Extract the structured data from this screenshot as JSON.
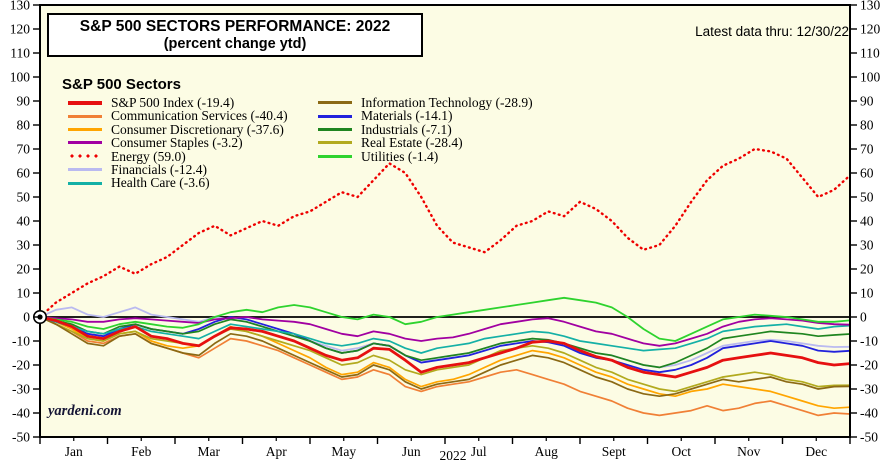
{
  "header": {
    "title_line1": "S&P 500 SECTORS PERFORMANCE: 2022",
    "title_line2": "(percent change ytd)",
    "note": "Latest data thru: 12/30/22"
  },
  "watermark": "yardeni.com",
  "legend": {
    "title": "S&P 500 Sectors",
    "columns": [
      [
        "S&P 500 Index",
        "Communication Services",
        "Consumer Discretionary",
        "Consumer Staples",
        "Energy",
        "Financials",
        "Health Care"
      ],
      [
        "Information Technology",
        "Materials",
        "Industrials",
        "Real Estate",
        "Utilities"
      ]
    ]
  },
  "chart_data": {
    "type": "line",
    "title": "S&P 500 Sectors Performance 2022, percent change ytd",
    "x_axis": {
      "months": [
        "Jan",
        "Feb",
        "Mar",
        "Apr",
        "May",
        "Jun",
        "Jul",
        "Aug",
        "Sept",
        "Oct",
        "Nov",
        "Dec"
      ],
      "year": "2022",
      "points_per_year": 52
    },
    "y_axis": {
      "min": -50,
      "max": 130,
      "step": 10
    },
    "grid": false,
    "legend_position": "top-left",
    "draw_order": [
      "Financials",
      "Communication Services",
      "Consumer Discretionary",
      "Real Estate",
      "Information Technology",
      "Materials",
      "Industrials",
      "Health Care",
      "Consumer Staples",
      "Utilities",
      "S&P 500 Index",
      "Energy"
    ],
    "series": [
      {
        "name": "S&P 500 Index",
        "ytd": "-19.4",
        "color": "#E61010",
        "width": 2.8,
        "style": "solid",
        "values": [
          0,
          -1.5,
          -4,
          -8,
          -9,
          -6,
          -4,
          -8,
          -9,
          -11,
          -12,
          -8,
          -4.5,
          -5,
          -6,
          -8,
          -10,
          -13,
          -16,
          -18,
          -17,
          -13,
          -13.5,
          -18,
          -23,
          -21,
          -20,
          -19,
          -17,
          -15,
          -13,
          -10.5,
          -10,
          -11,
          -14,
          -16.5,
          -18,
          -21,
          -23,
          -24,
          -25,
          -23,
          -21,
          -18,
          -17,
          -16,
          -15,
          -16,
          -17,
          -19,
          -20,
          -19.4
        ]
      },
      {
        "name": "Communication Services",
        "ytd": "-40.4",
        "color": "#F08036",
        "width": 1.7,
        "style": "solid",
        "values": [
          0,
          -3,
          -6,
          -10,
          -11,
          -8,
          -7,
          -11,
          -13,
          -15,
          -17,
          -13,
          -9,
          -10,
          -12,
          -14,
          -17,
          -20,
          -23,
          -26,
          -25,
          -22,
          -24,
          -29,
          -31,
          -29,
          -28,
          -27,
          -25,
          -23,
          -22,
          -24,
          -26,
          -28,
          -31,
          -33,
          -35,
          -38,
          -40,
          -41,
          -40,
          -39,
          -37,
          -39,
          -38,
          -36,
          -35,
          -37,
          -39,
          -41,
          -40,
          -40.4
        ]
      },
      {
        "name": "Consumer Discretionary",
        "ytd": "-37.6",
        "color": "#FFA500",
        "width": 1.7,
        "style": "solid",
        "values": [
          0,
          -2,
          -5,
          -9,
          -10,
          -7,
          -6,
          -10,
          -12,
          -13,
          -12,
          -8,
          -4,
          -6,
          -8,
          -11,
          -14,
          -17,
          -21,
          -24,
          -23,
          -19,
          -21,
          -26,
          -29,
          -27,
          -26,
          -24,
          -21,
          -18,
          -16,
          -14,
          -15,
          -17,
          -20,
          -23,
          -25,
          -28,
          -30,
          -32,
          -33,
          -31,
          -30,
          -28,
          -29,
          -30,
          -31,
          -33,
          -35,
          -37,
          -38,
          -37.6
        ]
      },
      {
        "name": "Consumer Staples",
        "ytd": "-3.2",
        "color": "#A100A1",
        "width": 1.8,
        "style": "solid",
        "values": [
          0,
          -0.5,
          -1,
          -2,
          -2,
          -1,
          -0.5,
          -1,
          -1.5,
          -2,
          -2.5,
          -1,
          -0.5,
          0,
          -1,
          -1.5,
          -2,
          -3,
          -5,
          -7,
          -8,
          -6,
          -7,
          -9,
          -10,
          -9,
          -8.5,
          -7,
          -5,
          -3,
          -2,
          -1,
          -0.5,
          -2,
          -4,
          -6,
          -7,
          -9,
          -11,
          -12,
          -11,
          -9,
          -7,
          -4,
          -2,
          -1,
          -0.5,
          -1,
          -1.5,
          -2.5,
          -3,
          -3.2
        ]
      },
      {
        "name": "Energy",
        "ytd": "59.0",
        "color": "#EE0000",
        "width": 2.4,
        "style": "dotted",
        "values": [
          0,
          6,
          10,
          14,
          17,
          21,
          18,
          22,
          25,
          30,
          35,
          38,
          34,
          37,
          40,
          38,
          42,
          44,
          48,
          52,
          50,
          57,
          64,
          60,
          50,
          38,
          31,
          29,
          27,
          32,
          38,
          40,
          44,
          42,
          48,
          45,
          40,
          33,
          28,
          30,
          38,
          48,
          57,
          63,
          66,
          70,
          69,
          66,
          58,
          50,
          53,
          59
        ]
      },
      {
        "name": "Financials",
        "ytd": "-12.4",
        "color": "#BABAF0",
        "width": 1.8,
        "style": "solid",
        "values": [
          0,
          3,
          4,
          1,
          0,
          2,
          4,
          1,
          0,
          -1,
          -2,
          0,
          -1,
          -2,
          -4,
          -6,
          -8,
          -10,
          -12,
          -14,
          -13,
          -11,
          -12,
          -16,
          -19,
          -17,
          -16,
          -15,
          -13,
          -11,
          -10,
          -9,
          -9.5,
          -11,
          -13,
          -15,
          -16,
          -18,
          -20,
          -21,
          -20,
          -18,
          -15,
          -12,
          -11,
          -10,
          -9.5,
          -10,
          -11,
          -12,
          -12.5,
          -12.4
        ]
      },
      {
        "name": "Health Care",
        "ytd": "-3.6",
        "color": "#14B0A6",
        "width": 1.7,
        "style": "solid",
        "values": [
          0,
          -2,
          -4,
          -6,
          -7,
          -5,
          -4,
          -6,
          -7,
          -8,
          -9,
          -6,
          -3,
          -4,
          -5,
          -6,
          -7,
          -9,
          -11,
          -12,
          -11,
          -9,
          -10,
          -13,
          -15,
          -13,
          -12,
          -11,
          -9,
          -8,
          -7,
          -6,
          -6.5,
          -8,
          -10,
          -11,
          -12,
          -13,
          -14,
          -13.5,
          -13,
          -11,
          -9,
          -6,
          -5,
          -4,
          -3.5,
          -3,
          -4,
          -5,
          -4,
          -3.6
        ]
      },
      {
        "name": "Information Technology",
        "ytd": "-28.9",
        "color": "#8B6914",
        "width": 1.7,
        "style": "solid",
        "values": [
          0,
          -3,
          -7,
          -11,
          -12,
          -8,
          -7,
          -11,
          -13,
          -15,
          -16,
          -11,
          -7,
          -8,
          -10,
          -13,
          -16,
          -19,
          -22,
          -25,
          -24,
          -20,
          -22,
          -27,
          -30,
          -28,
          -27,
          -26,
          -23,
          -20,
          -18,
          -16,
          -17,
          -19,
          -22,
          -25,
          -27,
          -30,
          -32,
          -33,
          -32,
          -30,
          -28,
          -26,
          -27,
          -26,
          -25,
          -27,
          -28,
          -30,
          -29,
          -28.9
        ]
      },
      {
        "name": "Materials",
        "ytd": "-14.1",
        "color": "#2222DC",
        "width": 1.8,
        "style": "solid",
        "values": [
          0,
          -2,
          -4,
          -7,
          -8,
          -5,
          -3,
          -5,
          -6,
          -7,
          -5,
          -2,
          0,
          -1,
          -3,
          -5,
          -7,
          -10,
          -13,
          -15,
          -14,
          -11,
          -12,
          -16,
          -19,
          -18,
          -17,
          -16,
          -14,
          -12,
          -11,
          -10,
          -10.5,
          -12,
          -15,
          -17,
          -18,
          -20,
          -22,
          -23,
          -22,
          -20,
          -17,
          -13,
          -12,
          -11,
          -10,
          -11,
          -12,
          -14,
          -14.5,
          -14.1
        ]
      },
      {
        "name": "Industrials",
        "ytd": "-7.1",
        "color": "#1F851F",
        "width": 1.7,
        "style": "solid",
        "values": [
          0,
          -1.5,
          -3,
          -6,
          -7,
          -4,
          -3,
          -5,
          -6,
          -7,
          -6,
          -3,
          -1,
          -2,
          -4,
          -6,
          -8,
          -10,
          -13,
          -15,
          -14,
          -11,
          -12,
          -16,
          -18,
          -17,
          -16,
          -15,
          -13,
          -11,
          -10,
          -9,
          -9.5,
          -11,
          -13,
          -15,
          -16,
          -18,
          -20,
          -21,
          -19,
          -16,
          -13,
          -9,
          -8,
          -7,
          -6,
          -6.5,
          -7,
          -8,
          -7.5,
          -7.1
        ]
      },
      {
        "name": "Real Estate",
        "ytd": "-28.4",
        "color": "#B2AA1E",
        "width": 1.7,
        "style": "solid",
        "values": [
          0,
          -3,
          -6,
          -9,
          -10,
          -7,
          -6,
          -9,
          -10,
          -11,
          -12,
          -8,
          -5,
          -6,
          -8,
          -10,
          -12,
          -14,
          -17,
          -20,
          -19,
          -16,
          -18,
          -22,
          -24,
          -22,
          -21,
          -20,
          -17,
          -14,
          -13,
          -12,
          -13,
          -15,
          -18,
          -21,
          -23,
          -26,
          -28,
          -30,
          -31,
          -29,
          -27,
          -25,
          -24,
          -23,
          -24,
          -26,
          -27,
          -29,
          -28.5,
          -28.4
        ]
      },
      {
        "name": "Utilities",
        "ytd": "-1.4",
        "color": "#2ED32E",
        "width": 1.8,
        "style": "solid",
        "values": [
          0,
          -1,
          -2,
          -4,
          -5,
          -3,
          -2,
          -3,
          -4,
          -4.5,
          -3,
          0,
          2,
          3,
          2,
          4,
          5,
          4,
          2,
          0,
          -1,
          1,
          0,
          -3,
          -2,
          0,
          1,
          2,
          3,
          4,
          5,
          6,
          7,
          8,
          7,
          6,
          4,
          0,
          -5,
          -9,
          -10,
          -7,
          -4,
          -1,
          0,
          1,
          0.5,
          0,
          -1,
          -2,
          -2,
          -1.4
        ]
      }
    ],
    "colors": {
      "plot_background": "#FCFCE4",
      "frame": "#000000",
      "zero_line": "#000000"
    }
  }
}
